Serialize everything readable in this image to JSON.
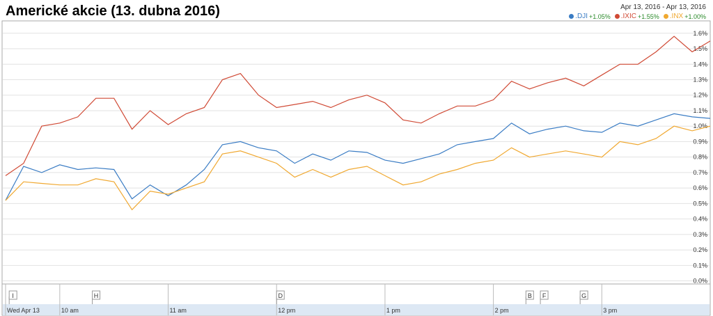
{
  "chart_data": {
    "type": "line",
    "title": "Americké akcie (13. dubna 2016)",
    "date_range": "Apr 13, 2016  -  Apr 13, 2016",
    "x": [
      0,
      10,
      20,
      30,
      40,
      50,
      60,
      70,
      80,
      90,
      100,
      110,
      120,
      130,
      140,
      150,
      160,
      170,
      180,
      190,
      200,
      210,
      220,
      230,
      240,
      250,
      260,
      270,
      280,
      290,
      300,
      310,
      320,
      330,
      340,
      350,
      360,
      370,
      380,
      390
    ],
    "xlim": [
      0,
      390
    ],
    "xticks": [
      {
        "value": 0,
        "label": "Wed Apr 13"
      },
      {
        "value": 30,
        "label": "10 am"
      },
      {
        "value": 90,
        "label": "11 am"
      },
      {
        "value": 150,
        "label": "12 pm"
      },
      {
        "value": 210,
        "label": "1 pm"
      },
      {
        "value": 270,
        "label": "2 pm"
      },
      {
        "value": 330,
        "label": "3 pm"
      }
    ],
    "ylim": [
      -0.02,
      1.68
    ],
    "yticks": [
      {
        "value": 0,
        "label": "0.0%"
      },
      {
        "value": 0.1,
        "label": "0.1%"
      },
      {
        "value": 0.2,
        "label": "0.2%"
      },
      {
        "value": 0.3,
        "label": "0.3%"
      },
      {
        "value": 0.4,
        "label": "0.4%"
      },
      {
        "value": 0.5,
        "label": "0.5%"
      },
      {
        "value": 0.6,
        "label": "0.6%"
      },
      {
        "value": 0.7,
        "label": "0.7%"
      },
      {
        "value": 0.8,
        "label": "0.8%"
      },
      {
        "value": 0.9,
        "label": "0.9%"
      },
      {
        "value": 1.0,
        "label": "1.0%"
      },
      {
        "value": 1.1,
        "label": "1.1%"
      },
      {
        "value": 1.2,
        "label": "1.2%"
      },
      {
        "value": 1.3,
        "label": "1.3%"
      },
      {
        "value": 1.4,
        "label": "1.4%"
      },
      {
        "value": 1.5,
        "label": "1.5%"
      },
      {
        "value": 1.6,
        "label": "1.6%"
      }
    ],
    "grid": true,
    "series": [
      {
        "name": ".DJI",
        "change": "+1.05%",
        "color": "#3a7cc4",
        "values": [
          0.52,
          0.74,
          0.7,
          0.75,
          0.72,
          0.73,
          0.72,
          0.53,
          0.62,
          0.55,
          0.62,
          0.72,
          0.88,
          0.9,
          0.86,
          0.84,
          0.76,
          0.82,
          0.78,
          0.84,
          0.83,
          0.78,
          0.76,
          0.79,
          0.82,
          0.88,
          0.9,
          0.92,
          1.02,
          0.95,
          0.98,
          1.0,
          0.97,
          0.96,
          1.02,
          1.0,
          1.04,
          1.08,
          1.06,
          1.05
        ]
      },
      {
        "name": ".IXIC",
        "change": "+1.55%",
        "color": "#d04a35",
        "values": [
          0.68,
          0.76,
          1.0,
          1.02,
          1.06,
          1.18,
          1.18,
          0.98,
          1.1,
          1.01,
          1.08,
          1.12,
          1.3,
          1.34,
          1.2,
          1.12,
          1.14,
          1.16,
          1.12,
          1.17,
          1.2,
          1.15,
          1.04,
          1.02,
          1.08,
          1.13,
          1.13,
          1.17,
          1.29,
          1.24,
          1.28,
          1.31,
          1.26,
          1.33,
          1.4,
          1.4,
          1.48,
          1.58,
          1.48,
          1.55
        ]
      },
      {
        "name": ".INX",
        "change": "+1.00%",
        "color": "#f0a830",
        "values": [
          0.52,
          0.64,
          0.63,
          0.62,
          0.62,
          0.66,
          0.64,
          0.46,
          0.58,
          0.56,
          0.6,
          0.64,
          0.82,
          0.84,
          0.8,
          0.76,
          0.67,
          0.72,
          0.67,
          0.72,
          0.74,
          0.68,
          0.62,
          0.64,
          0.69,
          0.72,
          0.76,
          0.78,
          0.86,
          0.8,
          0.82,
          0.84,
          0.82,
          0.8,
          0.9,
          0.88,
          0.92,
          1.0,
          0.97,
          1.0
        ]
      }
    ],
    "annotations": [
      {
        "label": "I",
        "x": 2
      },
      {
        "label": "H",
        "x": 48
      },
      {
        "label": "D",
        "x": 150
      },
      {
        "label": "B",
        "x": 288
      },
      {
        "label": "F",
        "x": 296
      },
      {
        "label": "G",
        "x": 318
      }
    ]
  }
}
